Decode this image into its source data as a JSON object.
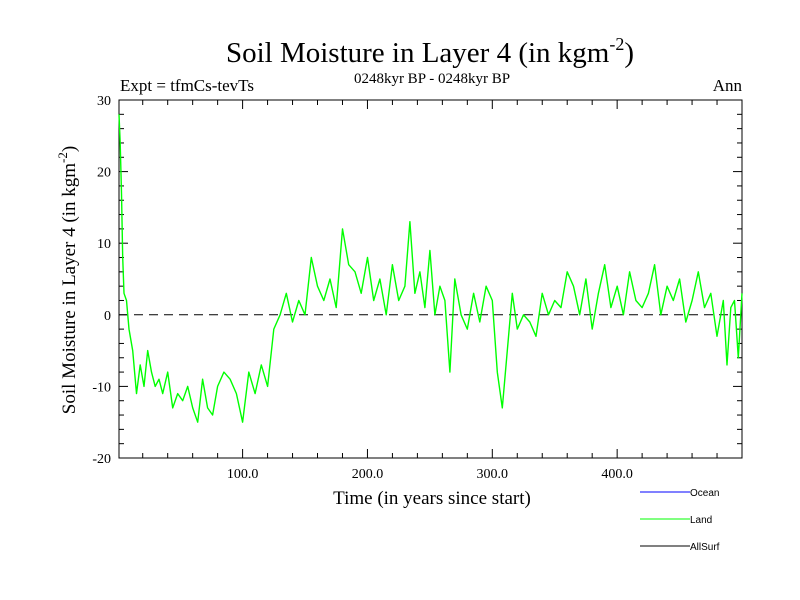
{
  "chart_data": {
    "type": "line",
    "title": "Soil Moisture in Layer 4 (in kgm",
    "title_sup": "-2",
    "title_close": ")",
    "subtitle": "0248kyr BP - 0248kyr BP",
    "expt_label": "Expt = tfmCs-tevTs",
    "season_label": "Ann",
    "xlabel": "Time (in years since start)",
    "ylabel": "Soil Moisture in Layer 4 (in kgm",
    "ylabel_sup": "-2",
    "ylabel_close": ")",
    "xlim": [
      1,
      500
    ],
    "ylim": [
      -20,
      30
    ],
    "x_ticks": [
      100,
      200,
      300,
      400
    ],
    "x_tick_labels": [
      "100.0",
      "200.0",
      "300.0",
      "400.0"
    ],
    "y_ticks": [
      -20,
      -10,
      0,
      10,
      20,
      30
    ],
    "y_tick_labels": [
      "-20",
      "-10",
      "0",
      "10",
      "20",
      "30"
    ],
    "zero_line": 0,
    "legend": [
      {
        "name": "Ocean",
        "color": "#0000ff"
      },
      {
        "name": "Land",
        "color": "#00ff00"
      },
      {
        "name": "AllSurf",
        "color": "#000000"
      }
    ],
    "series": [
      {
        "name": "Land",
        "color": "#00ff00",
        "x": [
          1,
          2,
          3,
          4,
          5,
          7,
          9,
          12,
          15,
          18,
          21,
          24,
          27,
          30,
          33,
          36,
          40,
          44,
          48,
          52,
          56,
          60,
          64,
          68,
          72,
          76,
          80,
          85,
          90,
          95,
          100,
          105,
          110,
          115,
          120,
          125,
          130,
          135,
          140,
          145,
          150,
          155,
          160,
          165,
          170,
          175,
          180,
          185,
          190,
          195,
          200,
          205,
          210,
          215,
          220,
          225,
          230,
          234,
          238,
          242,
          246,
          250,
          254,
          258,
          262,
          266,
          270,
          275,
          280,
          285,
          290,
          295,
          300,
          304,
          308,
          312,
          316,
          320,
          325,
          330,
          335,
          340,
          345,
          350,
          355,
          360,
          365,
          370,
          375,
          380,
          385,
          390,
          395,
          400,
          405,
          410,
          415,
          420,
          425,
          430,
          435,
          440,
          445,
          450,
          455,
          460,
          465,
          470,
          475,
          480,
          485,
          488,
          491,
          494,
          497,
          500
        ],
        "values": [
          28,
          24,
          17,
          8,
          3,
          2,
          -2,
          -5,
          -11,
          -7,
          -10,
          -5,
          -8,
          -10,
          -9,
          -11,
          -8,
          -13,
          -11,
          -12,
          -10,
          -13,
          -15,
          -9,
          -13,
          -14,
          -10,
          -8,
          -9,
          -11,
          -15,
          -8,
          -11,
          -7,
          -10,
          -2,
          0,
          3,
          -1,
          2,
          0,
          8,
          4,
          2,
          5,
          1,
          12,
          7,
          6,
          3,
          8,
          2,
          5,
          0,
          7,
          2,
          4,
          13,
          3,
          6,
          1,
          9,
          0,
          4,
          2,
          -8,
          5,
          0,
          -2,
          3,
          -1,
          4,
          2,
          -8,
          -13,
          -5,
          3,
          -2,
          0,
          -1,
          -3,
          3,
          0,
          2,
          1,
          6,
          4,
          0,
          5,
          -2,
          3,
          7,
          1,
          4,
          0,
          6,
          2,
          1,
          3,
          7,
          0,
          4,
          2,
          5,
          -1,
          2,
          6,
          1,
          3,
          -3,
          2,
          -7,
          1,
          2,
          -6,
          3
        ]
      }
    ]
  }
}
